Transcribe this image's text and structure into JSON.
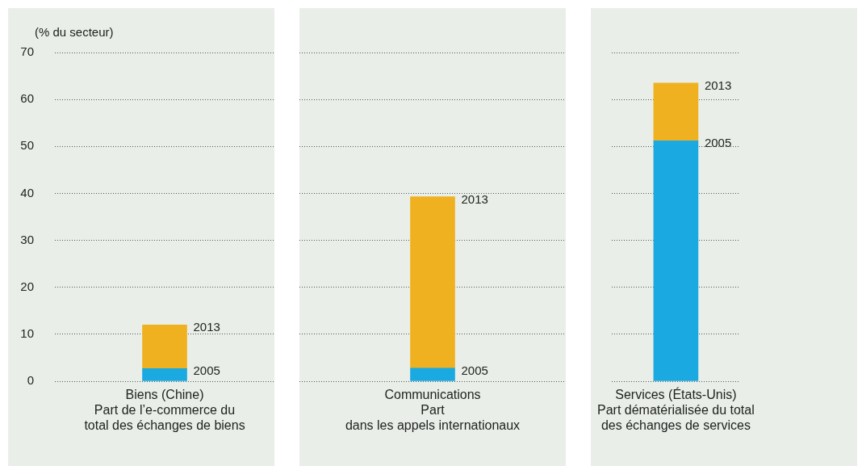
{
  "chart_data": [
    {
      "type": "bar",
      "stacked": true,
      "ylabel": "(% du secteur)",
      "categories": [
        "Biens (Chine)\nPart de l’e-commerce du\ntotal des échanges de biens"
      ],
      "series": [
        {
          "name": "2005",
          "color": "#1ba9e1",
          "values": [
            2.7
          ]
        },
        {
          "name": "2013",
          "color": "#f0b121",
          "values": [
            9.3
          ]
        }
      ],
      "ylim": [
        0,
        70
      ],
      "yticks": [
        0,
        10,
        20,
        30,
        40,
        50,
        60,
        70
      ],
      "grid": "y",
      "legend": false
    },
    {
      "type": "bar",
      "stacked": true,
      "categories": [
        "Communications\nPart\ndans les appels internationaux"
      ],
      "series": [
        {
          "name": "2005",
          "color": "#1ba9e1",
          "values": [
            2.8
          ]
        },
        {
          "name": "2013",
          "color": "#f0b121",
          "values": [
            36.5
          ]
        }
      ],
      "ylim": [
        0,
        70
      ],
      "yticks": [
        0,
        10,
        20,
        30,
        40,
        50,
        60,
        70
      ],
      "grid": "y",
      "legend": false,
      "tick_labels": "x"
    },
    {
      "type": "bar",
      "stacked": true,
      "categories": [
        "Services (États-Unis)\nPart dématérialisée du total\ndes échanges de services"
      ],
      "series": [
        {
          "name": "2005",
          "color": "#1ba9e1",
          "values": [
            51.2
          ]
        },
        {
          "name": "2013",
          "color": "#f0b121",
          "values": [
            12.3
          ]
        }
      ],
      "ylim": [
        0,
        70
      ],
      "yticks": [
        0,
        10,
        20,
        30,
        40,
        50,
        60,
        70
      ],
      "grid": "y",
      "legend": false,
      "tick_labels": "x"
    }
  ]
}
